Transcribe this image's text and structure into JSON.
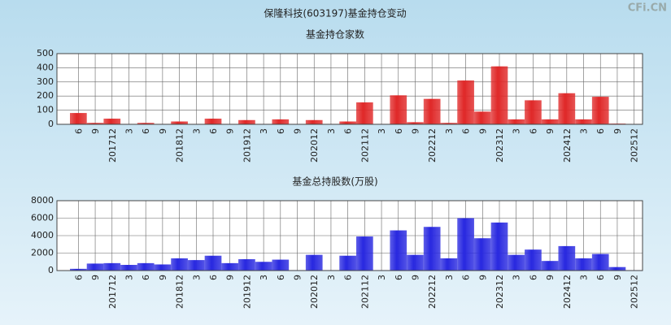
{
  "title": "保隆科技(603197)基金持仓变动",
  "watermark": "CFi.CN",
  "chart_data": [
    {
      "type": "bar",
      "title": "基金持仓家数",
      "color": "#e02828",
      "categories": [
        "6",
        "9",
        "201712",
        "3",
        "6",
        "9",
        "201812",
        "3",
        "6",
        "9",
        "201912",
        "3",
        "6",
        "9",
        "202012",
        "3",
        "6",
        "202112",
        "3",
        "6",
        "9",
        "202212",
        "3",
        "6",
        "9",
        "202312",
        "3",
        "6",
        "9",
        "202412",
        "3",
        "6",
        "9",
        "202512"
      ],
      "values": [
        80,
        10,
        40,
        3,
        10,
        3,
        20,
        3,
        40,
        3,
        30,
        3,
        35,
        3,
        30,
        3,
        20,
        155,
        3,
        205,
        15,
        180,
        10,
        310,
        90,
        410,
        35,
        170,
        35,
        220,
        35,
        195,
        5,
        3
      ],
      "ylim": [
        0,
        500
      ],
      "yticks": [
        0,
        100,
        200,
        300,
        400,
        500
      ],
      "grid": true
    },
    {
      "type": "bar",
      "title": "基金总持股数(万股)",
      "color": "#2828e0",
      "categories": [
        "6",
        "9",
        "201712",
        "3",
        "6",
        "9",
        "201812",
        "3",
        "6",
        "9",
        "201912",
        "3",
        "6",
        "9",
        "202012",
        "3",
        "6",
        "202112",
        "3",
        "6",
        "9",
        "202212",
        "3",
        "6",
        "9",
        "202312",
        "3",
        "6",
        "9",
        "202412",
        "3",
        "6",
        "9",
        "202512"
      ],
      "values": [
        200,
        800,
        850,
        650,
        850,
        700,
        1400,
        1200,
        1700,
        850,
        1300,
        1000,
        1250,
        50,
        1800,
        50,
        1700,
        3900,
        50,
        4600,
        1800,
        5000,
        1400,
        6000,
        3700,
        5500,
        1800,
        2400,
        1100,
        2800,
        1400,
        1900,
        400,
        50
      ],
      "ylim": [
        0,
        8000
      ],
      "yticks": [
        0,
        2000,
        4000,
        6000,
        8000
      ],
      "grid": true
    }
  ]
}
